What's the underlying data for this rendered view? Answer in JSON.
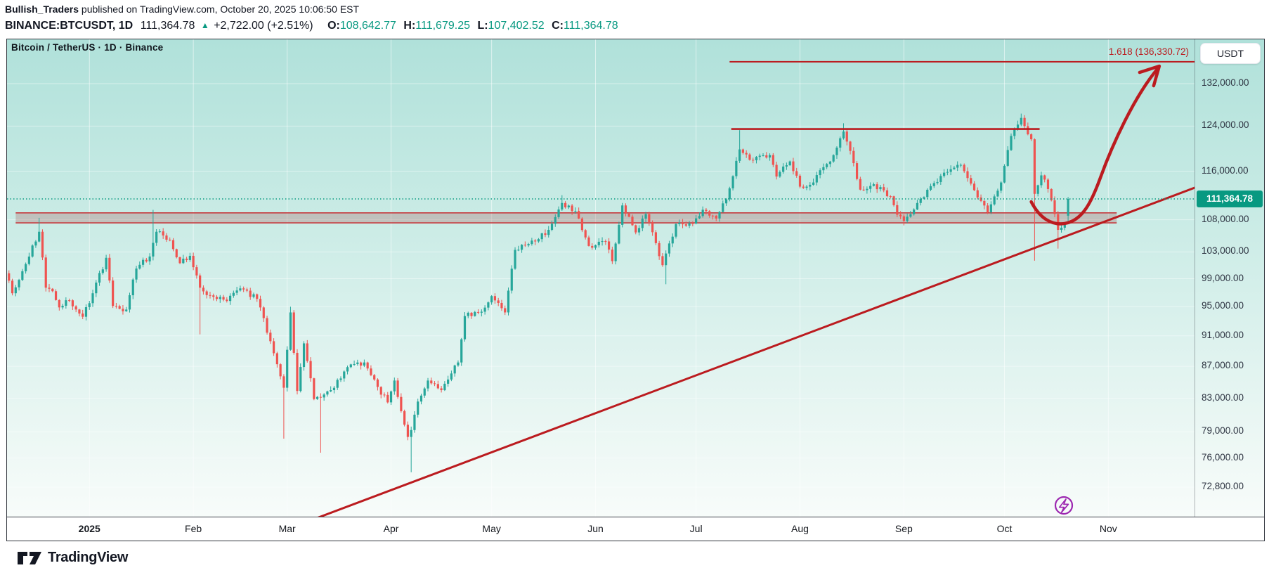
{
  "header": {
    "author": "Bullish_Traders",
    "published_text": " published on TradingView.com, October 20, 2025 10:06:50 EST",
    "symbol": "BINANCE:BTCUSDT,",
    "interval": "1D",
    "last_price": "111,364.78",
    "direction_icon": "▲",
    "change": "+2,722.00 (+2.51%)",
    "ohlc": [
      {
        "label": "O:",
        "value": "108,642.77"
      },
      {
        "label": "H:",
        "value": "111,679.25"
      },
      {
        "label": "L:",
        "value": "107,402.52"
      },
      {
        "label": "C:",
        "value": "111,364.78"
      }
    ]
  },
  "chart": {
    "watermark_title": "Bitcoin / TetherUS · 1D · Binance",
    "price_axis": {
      "currency_button": "USDT",
      "current_price_label": "111,364.78",
      "ticks": [
        {
          "text": "132,000.00",
          "value": 132000
        },
        {
          "text": "124,000.00",
          "value": 124000
        },
        {
          "text": "116,000.00",
          "value": 116000
        },
        {
          "text": "108,000.00",
          "value": 108000
        },
        {
          "text": "103,000.00",
          "value": 103000
        },
        {
          "text": "99,000.00",
          "value": 99000
        },
        {
          "text": "95,000.00",
          "value": 95000
        },
        {
          "text": "91,000.00",
          "value": 91000
        },
        {
          "text": "87,000.00",
          "value": 87000
        },
        {
          "text": "83,000.00",
          "value": 83000
        },
        {
          "text": "79,000.00",
          "value": 79000
        },
        {
          "text": "76,000.00",
          "value": 76000
        },
        {
          "text": "72,800.00",
          "value": 72800
        }
      ]
    },
    "time_axis": [
      {
        "text": "2025",
        "bold": true,
        "day": 25
      },
      {
        "text": "Feb",
        "bold": false,
        "day": 56
      },
      {
        "text": "Mar",
        "bold": false,
        "day": 84
      },
      {
        "text": "Apr",
        "bold": false,
        "day": 115
      },
      {
        "text": "May",
        "bold": false,
        "day": 145
      },
      {
        "text": "Jun",
        "bold": false,
        "day": 176
      },
      {
        "text": "Jul",
        "bold": false,
        "day": 206
      },
      {
        "text": "Aug",
        "bold": false,
        "day": 237
      },
      {
        "text": "Sep",
        "bold": false,
        "day": 268
      },
      {
        "text": "Oct",
        "bold": false,
        "day": 298
      },
      {
        "text": "Nov",
        "bold": false,
        "day": 329
      }
    ]
  },
  "chart_data": {
    "type": "candlestick",
    "symbol": "BINANCE:BTCUSDT",
    "interval": "1D",
    "scale": "log",
    "start_date": "2024-12-07",
    "end_date": "2025-10-20",
    "price_range_top": 140900,
    "price_range_bottom": 69560,
    "current_price": 111364.78,
    "last_candle": {
      "open": 108642.77,
      "high": 111679.25,
      "low": 107402.52,
      "close": 111364.78
    },
    "waypoints_format": "[day_index_from_2024-12-07, close_price_usdt]",
    "waypoints": [
      [
        0,
        99800
      ],
      [
        2,
        96900
      ],
      [
        5,
        100100
      ],
      [
        10,
        106100
      ],
      [
        12,
        97700
      ],
      [
        14,
        97200
      ],
      [
        16,
        94900
      ],
      [
        19,
        95900
      ],
      [
        23,
        93600
      ],
      [
        26,
        96900
      ],
      [
        30,
        102100
      ],
      [
        32,
        95100
      ],
      [
        36,
        94600
      ],
      [
        39,
        100500
      ],
      [
        43,
        102300
      ],
      [
        45,
        106100
      ],
      [
        49,
        104800
      ],
      [
        52,
        101300
      ],
      [
        55,
        102400
      ],
      [
        58,
        97700
      ],
      [
        61,
        96600
      ],
      [
        66,
        95800
      ],
      [
        70,
        97600
      ],
      [
        75,
        96100
      ],
      [
        80,
        88700
      ],
      [
        83,
        84300
      ],
      [
        85,
        94200
      ],
      [
        87,
        83900
      ],
      [
        89,
        90000
      ],
      [
        92,
        82900
      ],
      [
        94,
        83100
      ],
      [
        97,
        84000
      ],
      [
        102,
        86900
      ],
      [
        107,
        87500
      ],
      [
        111,
        84400
      ],
      [
        114,
        82500
      ],
      [
        116,
        85200
      ],
      [
        120,
        78400
      ],
      [
        121,
        79200
      ],
      [
        123,
        82600
      ],
      [
        126,
        85200
      ],
      [
        130,
        84000
      ],
      [
        135,
        87500
      ],
      [
        137,
        93700
      ],
      [
        142,
        94300
      ],
      [
        145,
        96500
      ],
      [
        149,
        94200
      ],
      [
        152,
        103300
      ],
      [
        156,
        104200
      ],
      [
        162,
        106400
      ],
      [
        166,
        110700
      ],
      [
        170,
        109400
      ],
      [
        174,
        103900
      ],
      [
        179,
        104600
      ],
      [
        181,
        101600
      ],
      [
        184,
        110300
      ],
      [
        188,
        106000
      ],
      [
        191,
        108900
      ],
      [
        196,
        101000
      ],
      [
        200,
        107300
      ],
      [
        205,
        107400
      ],
      [
        208,
        109600
      ],
      [
        212,
        108200
      ],
      [
        215,
        111300
      ],
      [
        219,
        119800
      ],
      [
        223,
        117900
      ],
      [
        228,
        118800
      ],
      [
        230,
        115100
      ],
      [
        234,
        117700
      ],
      [
        237,
        113400
      ],
      [
        241,
        114100
      ],
      [
        244,
        116700
      ],
      [
        247,
        118800
      ],
      [
        250,
        123000
      ],
      [
        253,
        117400
      ],
      [
        255,
        112900
      ],
      [
        259,
        113800
      ],
      [
        264,
        111800
      ],
      [
        266,
        108800
      ],
      [
        268,
        107800
      ],
      [
        272,
        110700
      ],
      [
        277,
        114000
      ],
      [
        281,
        115900
      ],
      [
        285,
        117100
      ],
      [
        289,
        112800
      ],
      [
        293,
        109200
      ],
      [
        297,
        114100
      ],
      [
        300,
        122200
      ],
      [
        303,
        125500
      ],
      [
        305,
        122500
      ],
      [
        306,
        121600
      ],
      [
        307,
        112200
      ],
      [
        309,
        115300
      ],
      [
        311,
        113000
      ],
      [
        313,
        108900
      ],
      [
        314,
        106400
      ],
      [
        316,
        107200
      ],
      [
        317,
        111364.78
      ]
    ],
    "wick_spikes": [
      {
        "day": 10,
        "type": "high",
        "price": 108300
      },
      {
        "day": 44,
        "type": "high",
        "price": 109588
      },
      {
        "day": 58,
        "type": "low",
        "price": 91200
      },
      {
        "day": 83,
        "type": "low",
        "price": 78200
      },
      {
        "day": 85,
        "type": "high",
        "price": 95000
      },
      {
        "day": 94,
        "type": "low",
        "price": 76600
      },
      {
        "day": 121,
        "type": "low",
        "price": 74420
      },
      {
        "day": 166,
        "type": "high",
        "price": 111980
      },
      {
        "day": 197,
        "type": "low",
        "price": 98200
      },
      {
        "day": 219,
        "type": "high",
        "price": 123250
      },
      {
        "day": 250,
        "type": "high",
        "price": 124500
      },
      {
        "day": 268,
        "type": "low",
        "price": 107100
      },
      {
        "day": 303,
        "type": "high",
        "price": 126300
      },
      {
        "day": 307,
        "type": "low",
        "price": 101672
      },
      {
        "day": 314,
        "type": "low",
        "price": 103500
      }
    ],
    "annotations": {
      "fib_extension": {
        "label": "1.618 (136,330.72)",
        "price": 136330.72,
        "x1_day": 216,
        "x2_day": 356
      },
      "resistance_line": {
        "price": 123460,
        "x1_day": 216.5,
        "x2_day": 308.5
      },
      "support_zone": {
        "price_top": 109100,
        "price_bottom": 107500,
        "x1_day": 3,
        "x2_day": 331.5
      },
      "trendline": {
        "from": {
          "day": 92,
          "price": 69450
        },
        "to": {
          "day": 358,
          "price": 113900
        }
      },
      "projection_arrow": {
        "from": {
          "day": 306,
          "price": 110900
        },
        "dip": {
          "day": 316,
          "price": 107400
        },
        "to": {
          "day": 344,
          "price": 135600
        }
      },
      "current_price_line": {
        "price": 111364.78
      }
    }
  },
  "footer": {
    "brand": "TradingView"
  },
  "colors": {
    "up": "#26a69a",
    "down": "#ef5350",
    "drawing_red": "#bb1b1f",
    "zone_fill": "rgba(168,96,96,0.30)",
    "zone_border": "#c53b3e",
    "teal_accent": "#089981",
    "price_tag_bg": "#089981",
    "bolt_purple": "#9c27b0"
  }
}
